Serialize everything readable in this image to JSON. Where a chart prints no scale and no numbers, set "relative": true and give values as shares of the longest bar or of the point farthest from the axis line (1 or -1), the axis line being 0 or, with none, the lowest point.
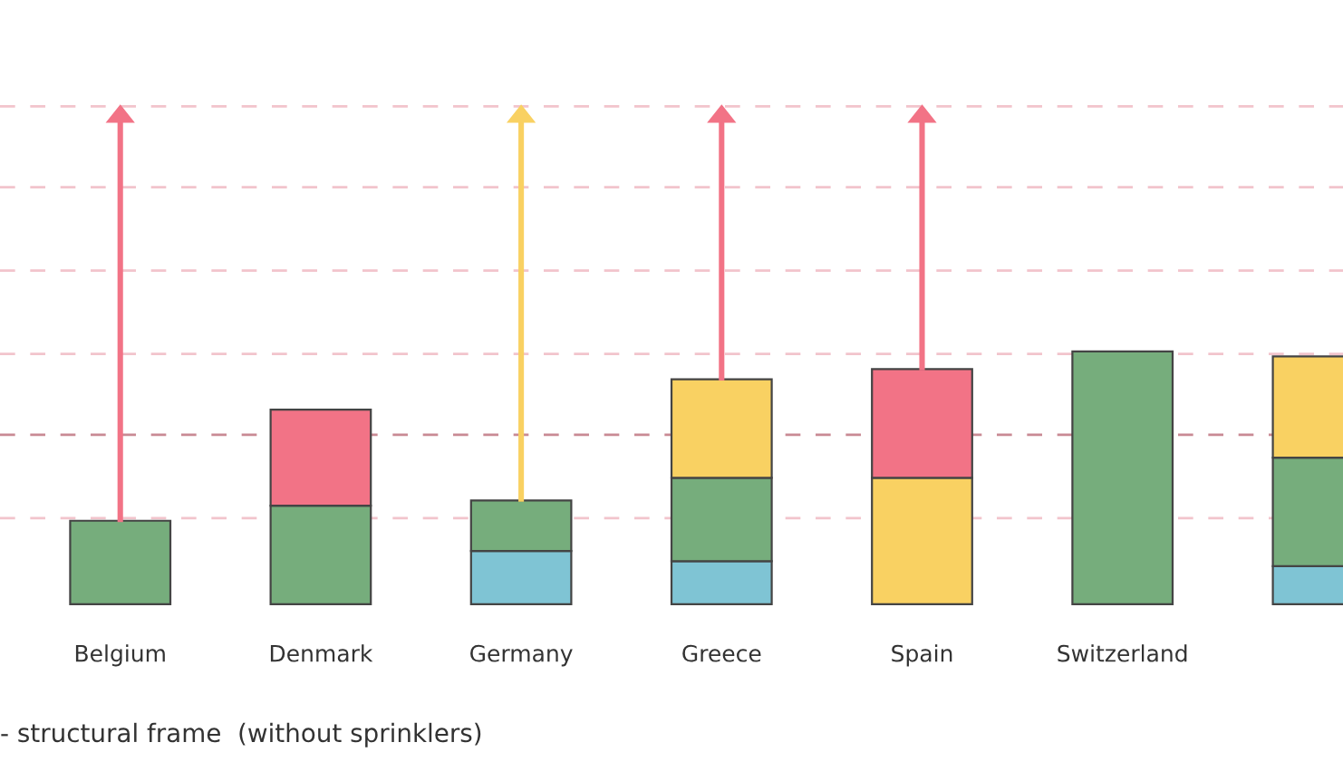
{
  "chart_data": {
    "type": "bar",
    "stacked": true,
    "relative": true,
    "categories": [
      "Belgium",
      "Denmark",
      "Germany",
      "Greece",
      "Spain",
      "Switzerland",
      null
    ],
    "series": [
      {
        "color": "#7fc4d4",
        "values": [
          null,
          null,
          0.21,
          0.17,
          null,
          null,
          0.15
        ]
      },
      {
        "color": "#76ad7c",
        "values": [
          0.33,
          0.39,
          0.2,
          0.33,
          null,
          1,
          0.43
        ]
      },
      {
        "color": "#f9d162",
        "values": [
          null,
          null,
          null,
          0.39,
          0.5,
          null,
          0.4
        ]
      },
      {
        "color": "#f27386",
        "values": [
          null,
          0.38,
          null,
          null,
          0.43,
          null,
          null
        ]
      }
    ],
    "ref_lines": [
      {
        "axis": "y",
        "value": 0.34,
        "color": "#f2c4cc",
        "line_style": "dashed"
      },
      {
        "axis": "y",
        "value": 0.67,
        "color": "#c98a94",
        "line_style": "dashed"
      },
      {
        "axis": "y",
        "value": 0.99,
        "color": "#f2c4cc",
        "line_style": "dashed"
      },
      {
        "axis": "y",
        "value": 1.32,
        "color": "#f2c4cc",
        "line_style": "dashed"
      },
      {
        "axis": "y",
        "value": 1.65,
        "color": "#f2c4cc",
        "line_style": "dashed"
      },
      {
        "axis": "y",
        "value": 1.97,
        "color": "#f2c4cc",
        "line_style": "dashed"
      }
    ],
    "annotations": [
      "- structural frame  (without sprinklers)"
    ],
    "grid": false,
    "legend": false
  }
}
